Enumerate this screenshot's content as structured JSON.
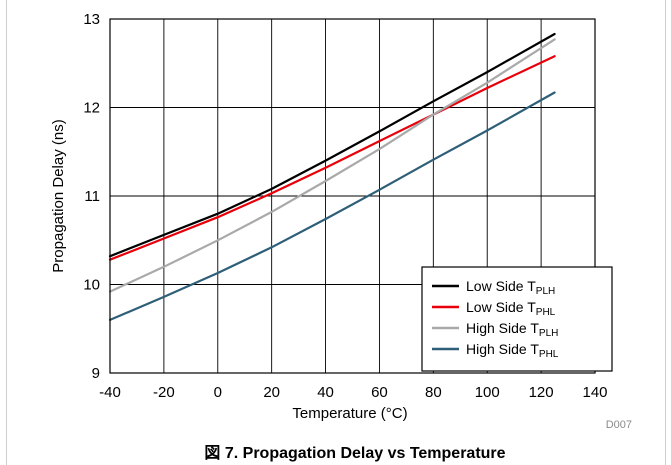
{
  "chart_data": {
    "type": "line",
    "title": "",
    "xlabel": "Temperature (°C)",
    "ylabel": "Propagation Delay (ns)",
    "xlim": [
      -40,
      140
    ],
    "ylim": [
      9,
      13
    ],
    "x_ticks": [
      "-40",
      "-20",
      "0",
      "20",
      "40",
      "60",
      "80",
      "100",
      "120",
      "140"
    ],
    "y_ticks": [
      "9",
      "10",
      "11",
      "12",
      "13"
    ],
    "grid": true,
    "legend_position": "bottom-right",
    "series": [
      {
        "name": "Low Side T",
        "subscript": "PLH",
        "color": "#000000",
        "x": [
          -40,
          -20,
          0,
          20,
          40,
          60,
          80,
          100,
          125
        ],
        "y": [
          10.32,
          10.56,
          10.8,
          11.08,
          11.4,
          11.73,
          12.07,
          12.4,
          12.83
        ]
      },
      {
        "name": "Low Side T",
        "subscript": "PHL",
        "color": "#e8000b",
        "x": [
          -40,
          -20,
          0,
          20,
          40,
          60,
          80,
          100,
          125
        ],
        "y": [
          10.28,
          10.52,
          10.76,
          11.03,
          11.32,
          11.62,
          11.92,
          12.22,
          12.58
        ]
      },
      {
        "name": "High Side T",
        "subscript": "PLH",
        "color": "#a9a9a9",
        "x": [
          -40,
          -20,
          0,
          20,
          40,
          60,
          80,
          100,
          125
        ],
        "y": [
          9.92,
          10.2,
          10.5,
          10.82,
          11.17,
          11.53,
          11.92,
          12.28,
          12.77
        ]
      },
      {
        "name": "High Side T",
        "subscript": "PHL",
        "color": "#2f5f78",
        "x": [
          -40,
          -20,
          0,
          20,
          40,
          60,
          80,
          100,
          125
        ],
        "y": [
          9.6,
          9.86,
          10.13,
          10.42,
          10.74,
          11.07,
          11.41,
          11.74,
          12.17
        ]
      }
    ]
  },
  "figure_code": "D007",
  "caption": "図 7. Propagation Delay vs Temperature"
}
